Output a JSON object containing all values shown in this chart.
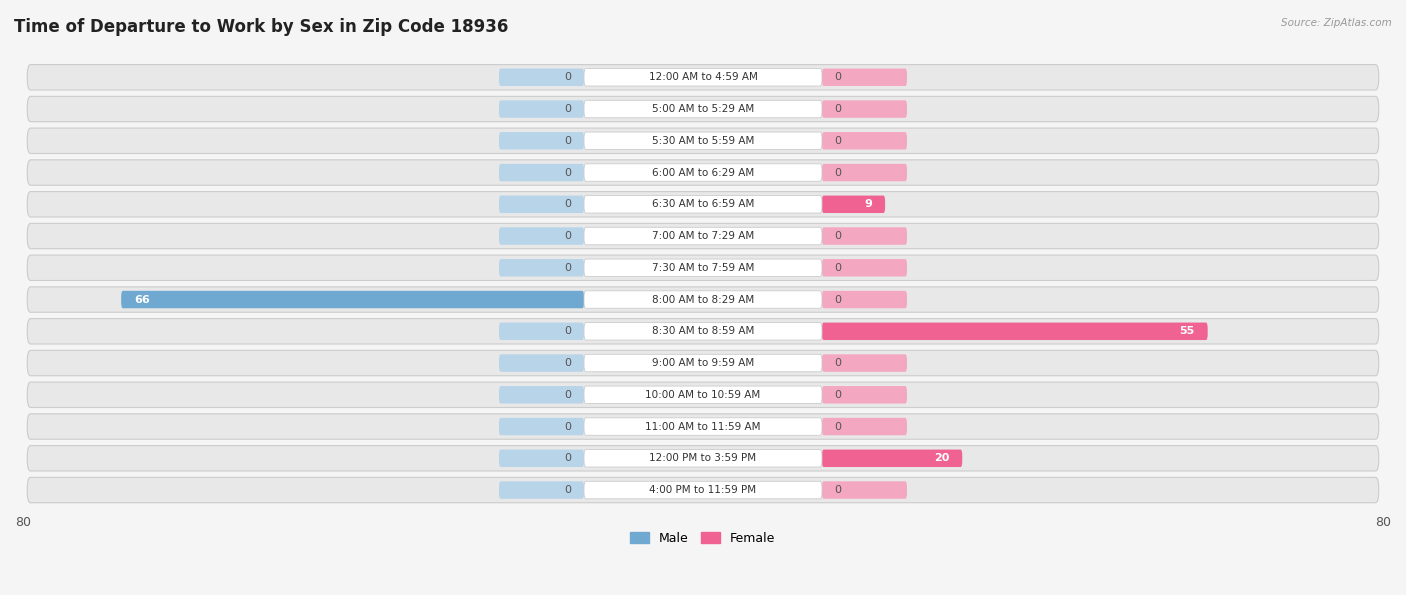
{
  "title": "Time of Departure to Work by Sex in Zip Code 18936",
  "source": "Source: ZipAtlas.com",
  "categories": [
    "12:00 AM to 4:59 AM",
    "5:00 AM to 5:29 AM",
    "5:30 AM to 5:59 AM",
    "6:00 AM to 6:29 AM",
    "6:30 AM to 6:59 AM",
    "7:00 AM to 7:29 AM",
    "7:30 AM to 7:59 AM",
    "8:00 AM to 8:29 AM",
    "8:30 AM to 8:59 AM",
    "9:00 AM to 9:59 AM",
    "10:00 AM to 10:59 AM",
    "11:00 AM to 11:59 AM",
    "12:00 PM to 3:59 PM",
    "4:00 PM to 11:59 PM"
  ],
  "male": [
    0,
    0,
    0,
    0,
    0,
    0,
    0,
    66,
    0,
    0,
    0,
    0,
    0,
    0
  ],
  "female": [
    0,
    0,
    0,
    0,
    9,
    0,
    0,
    0,
    55,
    0,
    0,
    0,
    20,
    0
  ],
  "male_color": "#6fa8d0",
  "male_color_light": "#b8d4e8",
  "female_color": "#f06292",
  "female_color_light": "#f4a7c0",
  "xlim": 80,
  "row_bg_color": "#e8e8e8",
  "fig_bg_color": "#f5f5f5",
  "label_box_color": "white",
  "title_fontsize": 12,
  "cat_fontsize": 7.5,
  "value_fontsize": 8,
  "tick_fontsize": 9,
  "legend_fontsize": 9
}
